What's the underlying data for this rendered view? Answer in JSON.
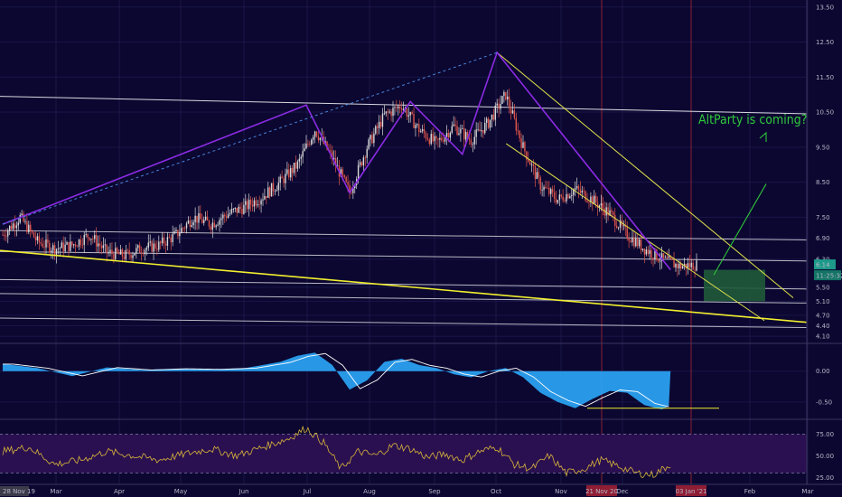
{
  "colors": {
    "background": "#0b0730",
    "up_candle": "#d9d9d9",
    "down_candle": "#e0554a",
    "pattern": "#8a2be2",
    "channel": "#e3e34a",
    "trend": "#f2ef2f",
    "level": "#d8d8e0",
    "target_box": "#1f5a3a",
    "projection": "#31c33a",
    "macd_fill": "#2aa0f0",
    "macd_line": "#ffffff",
    "rsi_line": "#d9b43a",
    "rsi_band": "#2a1050",
    "date_marker": "#8e1d33"
  },
  "annotation": "AltParty is coming?",
  "last_price_tag": "6.14",
  "countdown_tag": "11:25:32",
  "date_markers": [
    "21 Nov 20",
    "03 Jan '21"
  ],
  "start_label": "28 Nov 19",
  "chart_data": [
    {
      "type": "line",
      "pane": "price",
      "title": "",
      "x_ticks": [
        "Mar",
        "Apr",
        "May",
        "Jun",
        "Jul",
        "Aug",
        "Sep",
        "Oct",
        "Nov",
        "Dec",
        "Feb",
        "Mar"
      ],
      "y_ticks": [
        "13.50",
        "12.50",
        "11.50",
        "10.50",
        "9.50",
        "8.50",
        "7.50",
        "6.90",
        "6.30",
        "5.50",
        "5.10",
        "4.70",
        "4.40",
        "4.10"
      ],
      "ylim": [
        3.95,
        13.7
      ],
      "x_index": [
        0,
        10,
        20,
        30,
        40,
        50,
        60,
        70,
        80,
        90,
        100,
        110,
        120,
        130,
        140,
        150,
        160,
        170,
        180,
        190,
        200,
        210,
        220,
        230,
        240,
        250,
        260,
        270,
        280,
        290,
        300,
        310,
        320,
        330,
        340,
        350,
        360,
        370,
        380,
        390,
        400
      ],
      "close": [
        7.0,
        7.5,
        6.8,
        6.6,
        6.7,
        7.0,
        6.5,
        6.4,
        6.6,
        6.7,
        7.0,
        7.5,
        7.3,
        7.6,
        7.8,
        8.1,
        8.5,
        9.0,
        10.0,
        9.2,
        8.2,
        9.5,
        10.4,
        10.7,
        10.0,
        9.6,
        10.1,
        9.7,
        10.2,
        11.0,
        9.5,
        8.4,
        8.0,
        8.3,
        8.0,
        7.6,
        7.0,
        6.6,
        6.3,
        6.1,
        6.14
      ],
      "pattern_points": [
        {
          "i": 0,
          "p": 7.3
        },
        {
          "i": 175,
          "p": 10.7
        },
        {
          "i": 200,
          "p": 8.2
        },
        {
          "i": 235,
          "p": 10.8
        },
        {
          "i": 265,
          "p": 9.3
        },
        {
          "i": 285,
          "p": 12.2
        },
        {
          "i": 385,
          "p": 6.0
        }
      ],
      "levels": [
        6.9,
        6.3,
        5.5,
        5.1,
        4.4
      ]
    },
    {
      "type": "area",
      "pane": "macd",
      "y_ticks": [
        "0.00",
        "-0.50"
      ],
      "ylim": [
        -0.75,
        0.42
      ],
      "x_index": [
        0,
        20,
        40,
        60,
        80,
        100,
        120,
        140,
        160,
        170,
        180,
        190,
        200,
        210,
        220,
        230,
        240,
        250,
        260,
        270,
        280,
        290,
        300,
        310,
        320,
        330,
        340,
        350,
        360,
        370,
        380,
        385
      ],
      "values": [
        0.12,
        0.05,
        -0.08,
        0.06,
        0.02,
        0.04,
        0.03,
        0.05,
        0.15,
        0.25,
        0.3,
        0.1,
        -0.3,
        -0.15,
        0.15,
        0.2,
        0.1,
        0.05,
        -0.05,
        -0.1,
        0.0,
        0.05,
        -0.1,
        -0.35,
        -0.5,
        -0.6,
        -0.45,
        -0.32,
        -0.35,
        -0.55,
        -0.62,
        -0.55
      ]
    },
    {
      "type": "line",
      "pane": "rsi",
      "y_ticks": [
        "75.00",
        "50.00",
        "25.00"
      ],
      "ylim": [
        18,
        90
      ],
      "x_index": [
        0,
        15,
        30,
        45,
        60,
        75,
        90,
        105,
        120,
        135,
        150,
        165,
        175,
        185,
        195,
        205,
        215,
        225,
        235,
        245,
        255,
        265,
        275,
        285,
        295,
        305,
        315,
        325,
        335,
        345,
        355,
        365,
        375,
        385
      ],
      "values": [
        55,
        60,
        40,
        45,
        55,
        50,
        45,
        52,
        58,
        50,
        60,
        70,
        82,
        65,
        35,
        55,
        50,
        62,
        58,
        48,
        52,
        45,
        55,
        60,
        40,
        35,
        50,
        30,
        35,
        45,
        38,
        30,
        28,
        40
      ]
    }
  ]
}
